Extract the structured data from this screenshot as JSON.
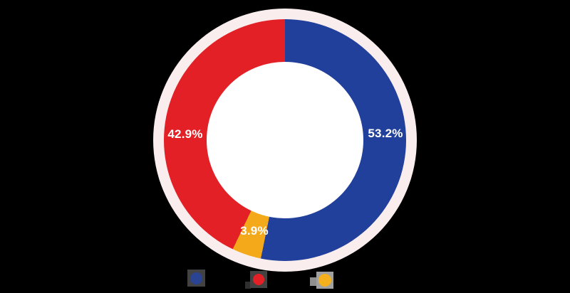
{
  "canvas": {
    "background": "#000000"
  },
  "chart_data": {
    "type": "pie",
    "variant": "donut",
    "title": "",
    "unit": "%",
    "categories": [
      "blue",
      "red",
      "yellow"
    ],
    "values": [
      53.2,
      42.9,
      3.9
    ],
    "segments_draw_order": [
      {
        "name": "blue",
        "value": 53.2,
        "label": "53.2%",
        "color": "#21409b"
      },
      {
        "name": "yellow",
        "value": 3.9,
        "label": "3.9%",
        "color": "#f4a91b"
      },
      {
        "name": "red",
        "value": 42.9,
        "label": "42.9%",
        "color": "#e32026"
      }
    ],
    "start_angle_deg": 0,
    "direction": "clockwise",
    "backdrop_ring_color": "#faeded",
    "hole_color": "#ffffff",
    "label_color": "#ffffff",
    "legend_position": "bottom",
    "legend_labels_visible": false
  },
  "legend": {
    "items": [
      {
        "name": "blue",
        "marker_color": "#2b4393",
        "box_color": "#424242"
      },
      {
        "name": "red",
        "marker_color": "#e32026",
        "box_color": "#424242",
        "notch_color": "#2f2f2f"
      },
      {
        "name": "yellow",
        "marker_color": "#f5b11c",
        "box_color": "#a1a1a1",
        "notch_color": "#8f8f8f"
      }
    ]
  }
}
